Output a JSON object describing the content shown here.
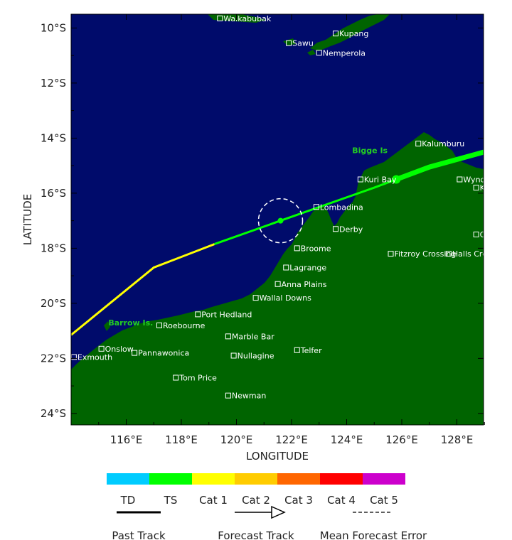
{
  "map": {
    "ocean_color": "#000b6b",
    "land_color": "#006400",
    "place_label_color": "#ffffff",
    "island_label_color": "#22cc22",
    "x_axis_title": "LONGITUDE",
    "y_axis_title": "LATITUDE",
    "lon_ticks": [
      "116°E",
      "118°E",
      "120°E",
      "122°E",
      "124°E",
      "126°E",
      "128°E"
    ],
    "lat_ticks": [
      "10°S",
      "12°S",
      "14°S",
      "16°S",
      "18°S",
      "20°S",
      "22°S",
      "24°S"
    ],
    "places": [
      {
        "name": "Waikabubak",
        "lon": 119.4,
        "lat": -9.65
      },
      {
        "name": "Kupang",
        "lon": 123.6,
        "lat": -10.2
      },
      {
        "name": "Sawu",
        "lon": 121.9,
        "lat": -10.55
      },
      {
        "name": "Nemperola",
        "lon": 123.0,
        "lat": -10.9
      },
      {
        "name": "Kalumburu",
        "lon": 126.6,
        "lat": -14.2
      },
      {
        "name": "Wyndham",
        "lon": 128.1,
        "lat": -15.5
      },
      {
        "name": "Kuri Bay",
        "lon": 124.5,
        "lat": -15.5
      },
      {
        "name": "Kununurra",
        "lon": 128.7,
        "lat": -15.8
      },
      {
        "name": "Lombadina",
        "lon": 122.9,
        "lat": -16.5
      },
      {
        "name": "Derby",
        "lon": 123.6,
        "lat": -17.3
      },
      {
        "name": "Ord River",
        "lon": 128.7,
        "lat": -17.5
      },
      {
        "name": "Broome",
        "lon": 122.2,
        "lat": -18.0
      },
      {
        "name": "Halls Creek",
        "lon": 127.7,
        "lat": -18.2
      },
      {
        "name": "Fitzroy Crossing",
        "lon": 125.6,
        "lat": -18.2
      },
      {
        "name": "Lagrange",
        "lon": 121.8,
        "lat": -18.7
      },
      {
        "name": "Anna Plains",
        "lon": 121.5,
        "lat": -19.3
      },
      {
        "name": "Wallal Downs",
        "lon": 120.7,
        "lat": -19.8
      },
      {
        "name": "Port Hedland",
        "lon": 118.6,
        "lat": -20.4
      },
      {
        "name": "Roebourne",
        "lon": 117.2,
        "lat": -20.8
      },
      {
        "name": "Marble Bar",
        "lon": 119.7,
        "lat": -21.2
      },
      {
        "name": "Onslow",
        "lon": 115.1,
        "lat": -21.65
      },
      {
        "name": "Exmouth",
        "lon": 114.1,
        "lat": -21.95
      },
      {
        "name": "Pannawonica",
        "lon": 116.3,
        "lat": -21.8
      },
      {
        "name": "Telfer",
        "lon": 122.2,
        "lat": -21.7
      },
      {
        "name": "Nullagine",
        "lon": 119.9,
        "lat": -21.9
      },
      {
        "name": "Tom Price",
        "lon": 117.8,
        "lat": -22.7
      },
      {
        "name": "Newman",
        "lon": 119.7,
        "lat": -23.35
      }
    ],
    "islands": [
      {
        "name": "Bigge Is",
        "lon": 124.2,
        "lat": -14.55
      },
      {
        "name": "Barrow Is.",
        "lon": 115.35,
        "lat": -20.8
      }
    ]
  },
  "tracks": {
    "past_track": [
      [
        114.0,
        -21.15
      ],
      [
        117.0,
        -18.7
      ],
      [
        119.2,
        -17.85
      ]
    ],
    "forecast_track": [
      [
        119.2,
        -17.85
      ],
      [
        121.6,
        -17.0
      ],
      [
        125.0,
        -15.8
      ],
      [
        125.8,
        -15.5
      ],
      [
        127.0,
        -15.05
      ],
      [
        129.0,
        -14.5
      ]
    ],
    "current_position": {
      "lon": 121.6,
      "lat": -17.0
    },
    "forecast_point": {
      "lon": 125.8,
      "lat": -15.5
    },
    "error_circle": {
      "lon": 121.6,
      "lat": -17.0,
      "radius_deg": 0.8
    },
    "past_color": "#ffff00",
    "forecast_color": "#00ff00"
  },
  "legend": {
    "categories": [
      {
        "label": "TD",
        "color": "#00ccff"
      },
      {
        "label": "TS",
        "color": "#00ff00"
      },
      {
        "label": "Cat 1",
        "color": "#ffff00"
      },
      {
        "label": "Cat 2",
        "color": "#ffcc00"
      },
      {
        "label": "Cat 3",
        "color": "#ff6600"
      },
      {
        "label": "Cat 4",
        "color": "#ff0000"
      },
      {
        "label": "Cat 5",
        "color": "#cc00cc"
      }
    ],
    "past_track_label": "Past Track",
    "forecast_track_label": "Forecast Track",
    "error_label": "Mean Forecast Error"
  }
}
